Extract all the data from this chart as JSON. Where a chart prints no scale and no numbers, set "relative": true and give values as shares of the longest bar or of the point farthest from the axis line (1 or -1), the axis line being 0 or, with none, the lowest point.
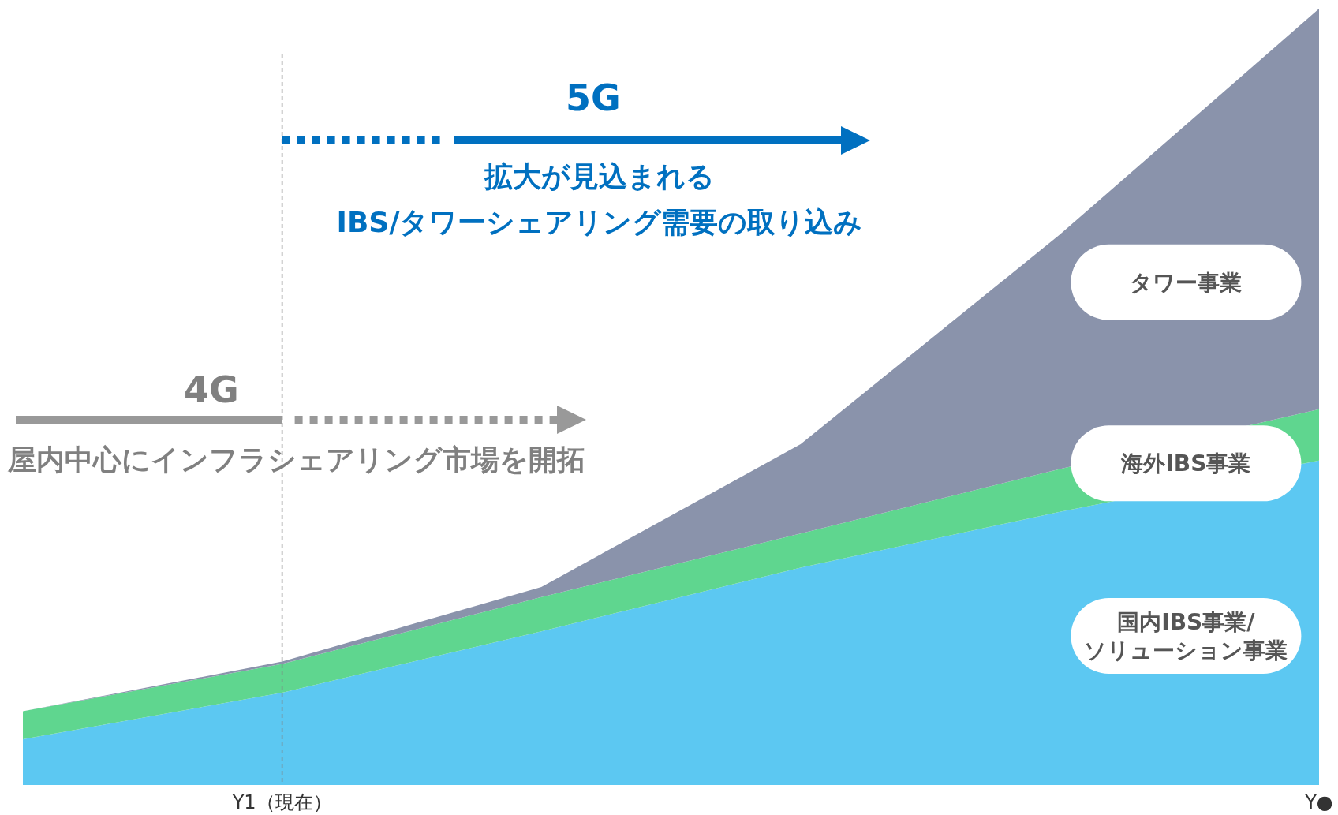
{
  "chart_data": {
    "type": "area",
    "stacked": true,
    "relative": true,
    "legend": false,
    "categories": [
      null,
      "Y1（現在）",
      null,
      null,
      null,
      "Y●"
    ],
    "series": [
      {
        "name": "国内IBS事業/\nソリューション事業",
        "color": "#5cc8f2",
        "values": [
          0.059,
          0.119,
          0.198,
          0.28,
          0.352,
          0.418
        ]
      },
      {
        "name": "海外IBS事業",
        "color": "#5fd68f",
        "values": [
          0.036,
          0.037,
          0.044,
          0.044,
          0.055,
          0.066
        ]
      },
      {
        "name": "タワー事業",
        "color": "#8a93ab",
        "values": [
          0,
          0.003,
          0.013,
          0.115,
          0.302,
          0.516
        ]
      }
    ],
    "ref_lines": [
      {
        "axis": "x",
        "value": "Y1（現在）",
        "color": "#808080",
        "line_style": "dashed"
      }
    ],
    "annotations": [
      "5G",
      "拡大が見込まれる\nIBS/タワーシェアリング需要の取り込み",
      "4G",
      "屋内中心にインフラシェアリング市場を開拓"
    ]
  }
}
